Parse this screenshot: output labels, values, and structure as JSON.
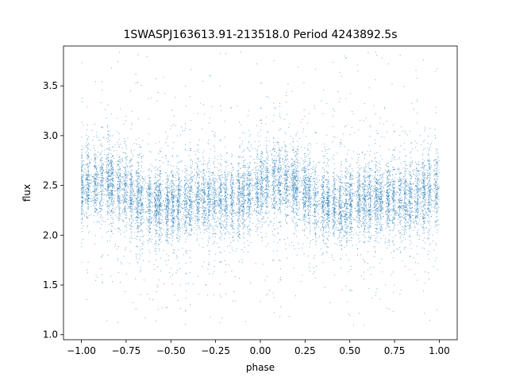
{
  "chart_data": {
    "type": "scatter",
    "title": "1SWASPJ163613.91-213518.0 Period 4243892.5s",
    "xlabel": "phase",
    "ylabel": "flux",
    "xlim": [
      -1.1,
      1.1
    ],
    "ylim": [
      0.95,
      3.9
    ],
    "xticks": [
      -1.0,
      -0.75,
      -0.5,
      -0.25,
      0.0,
      0.25,
      0.5,
      0.75,
      1.0
    ],
    "xtick_labels": [
      "−1.00",
      "−0.75",
      "−0.50",
      "−0.25",
      "0.00",
      "0.25",
      "0.50",
      "0.75",
      "1.00"
    ],
    "yticks": [
      1.0,
      1.5,
      2.0,
      2.5,
      3.0,
      3.5
    ],
    "ytick_labels": [
      "1.0",
      "1.5",
      "2.0",
      "2.5",
      "3.0",
      "3.5"
    ],
    "grid": false,
    "legend": "none",
    "marker_color": "#1f77b4",
    "series": [
      {
        "x_range": [
          -1.0,
          1.0
        ],
        "median_flux": 2.4,
        "typical_flux_range": [
          2.0,
          2.9
        ],
        "outlier_flux_range": [
          1.1,
          3.85
        ],
        "approx_points": 12000
      }
    ]
  }
}
